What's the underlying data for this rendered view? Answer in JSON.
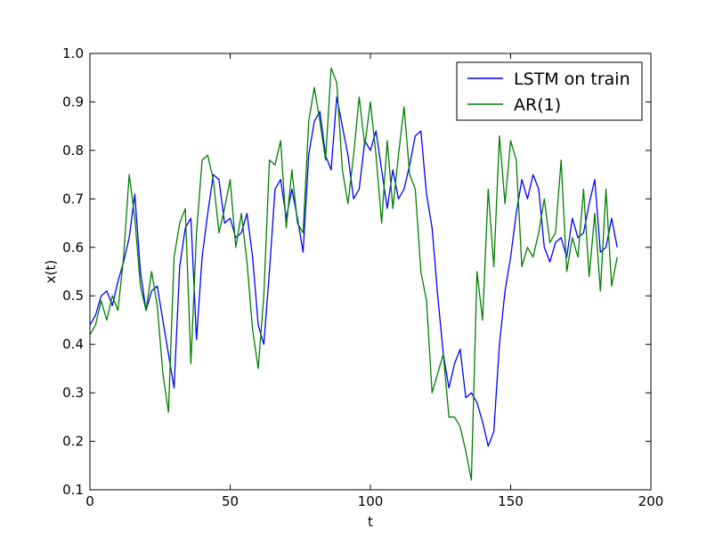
{
  "chart_data": {
    "type": "line",
    "title": "",
    "xlabel": "t",
    "ylabel": "x(t)",
    "xlim": [
      0,
      200
    ],
    "ylim": [
      0.1,
      1.0
    ],
    "xticks": [
      0,
      50,
      100,
      150,
      200
    ],
    "yticks": [
      0.1,
      0.2,
      0.3,
      0.4,
      0.5,
      0.6,
      0.7,
      0.8,
      0.9,
      1.0
    ],
    "xtick_labels": [
      "0",
      "50",
      "100",
      "150",
      "200"
    ],
    "ytick_labels": [
      "0.1",
      "0.2",
      "0.3",
      "0.4",
      "0.5",
      "0.6",
      "0.7",
      "0.8",
      "0.9",
      "1.0"
    ],
    "grid": false,
    "legend_position": "top-right",
    "series": [
      {
        "name": "LSTM on train",
        "color": "#0000ff",
        "x": [
          0,
          2,
          4,
          6,
          8,
          10,
          12,
          14,
          16,
          18,
          20,
          22,
          24,
          26,
          28,
          30,
          32,
          34,
          36,
          38,
          40,
          42,
          44,
          46,
          48,
          50,
          52,
          54,
          56,
          58,
          60,
          62,
          64,
          66,
          68,
          70,
          72,
          74,
          76,
          78,
          80,
          82,
          84,
          86,
          88,
          90,
          92,
          94,
          96,
          98,
          100,
          102,
          104,
          106,
          108,
          110,
          112,
          114,
          116,
          118,
          120,
          122,
          124,
          126,
          128,
          130,
          132,
          134,
          136,
          138,
          140,
          142,
          144,
          146,
          148,
          150,
          152,
          154,
          156,
          158,
          160,
          162,
          164,
          166,
          168,
          170,
          172,
          174,
          176,
          178,
          180,
          182,
          184,
          186,
          188
        ],
        "values": [
          0.44,
          0.46,
          0.5,
          0.51,
          0.48,
          0.53,
          0.57,
          0.62,
          0.71,
          0.55,
          0.47,
          0.51,
          0.52,
          0.45,
          0.38,
          0.31,
          0.56,
          0.64,
          0.66,
          0.41,
          0.58,
          0.67,
          0.75,
          0.74,
          0.65,
          0.66,
          0.62,
          0.63,
          0.67,
          0.58,
          0.44,
          0.4,
          0.55,
          0.72,
          0.74,
          0.66,
          0.72,
          0.66,
          0.59,
          0.79,
          0.86,
          0.88,
          0.79,
          0.76,
          0.91,
          0.85,
          0.79,
          0.7,
          0.72,
          0.82,
          0.8,
          0.84,
          0.76,
          0.68,
          0.76,
          0.7,
          0.72,
          0.77,
          0.83,
          0.84,
          0.71,
          0.64,
          0.5,
          0.38,
          0.31,
          0.36,
          0.39,
          0.29,
          0.3,
          0.28,
          0.24,
          0.19,
          0.22,
          0.4,
          0.51,
          0.58,
          0.67,
          0.74,
          0.7,
          0.75,
          0.72,
          0.6,
          0.57,
          0.61,
          0.62,
          0.58,
          0.66,
          0.62,
          0.63,
          0.69,
          0.74,
          0.59,
          0.6,
          0.66,
          0.6
        ]
      },
      {
        "name": "AR(1)",
        "color": "#008000",
        "x": [
          0,
          2,
          4,
          6,
          8,
          10,
          12,
          14,
          16,
          18,
          20,
          22,
          24,
          26,
          28,
          30,
          32,
          34,
          36,
          38,
          40,
          42,
          44,
          46,
          48,
          50,
          52,
          54,
          56,
          58,
          60,
          62,
          64,
          66,
          68,
          70,
          72,
          74,
          76,
          78,
          80,
          82,
          84,
          86,
          88,
          90,
          92,
          94,
          96,
          98,
          100,
          102,
          104,
          106,
          108,
          110,
          112,
          114,
          116,
          118,
          120,
          122,
          124,
          126,
          128,
          130,
          132,
          134,
          136,
          138,
          140,
          142,
          144,
          146,
          148,
          150,
          152,
          154,
          156,
          158,
          160,
          162,
          164,
          166,
          168,
          170,
          172,
          174,
          176,
          178,
          180,
          182,
          184,
          186,
          188
        ],
        "values": [
          0.42,
          0.44,
          0.49,
          0.45,
          0.5,
          0.47,
          0.58,
          0.75,
          0.66,
          0.52,
          0.47,
          0.55,
          0.48,
          0.34,
          0.26,
          0.58,
          0.65,
          0.68,
          0.36,
          0.63,
          0.78,
          0.79,
          0.74,
          0.63,
          0.68,
          0.74,
          0.6,
          0.67,
          0.57,
          0.43,
          0.35,
          0.5,
          0.78,
          0.77,
          0.82,
          0.64,
          0.76,
          0.65,
          0.63,
          0.86,
          0.93,
          0.86,
          0.78,
          0.97,
          0.94,
          0.76,
          0.69,
          0.79,
          0.91,
          0.81,
          0.9,
          0.79,
          0.65,
          0.82,
          0.68,
          0.79,
          0.89,
          0.75,
          0.72,
          0.55,
          0.49,
          0.3,
          0.34,
          0.38,
          0.25,
          0.25,
          0.23,
          0.18,
          0.12,
          0.55,
          0.45,
          0.72,
          0.56,
          0.83,
          0.69,
          0.82,
          0.78,
          0.56,
          0.6,
          0.58,
          0.63,
          0.7,
          0.61,
          0.63,
          0.78,
          0.55,
          0.62,
          0.58,
          0.72,
          0.54,
          0.67,
          0.51,
          0.72,
          0.52,
          0.58
        ]
      }
    ]
  }
}
